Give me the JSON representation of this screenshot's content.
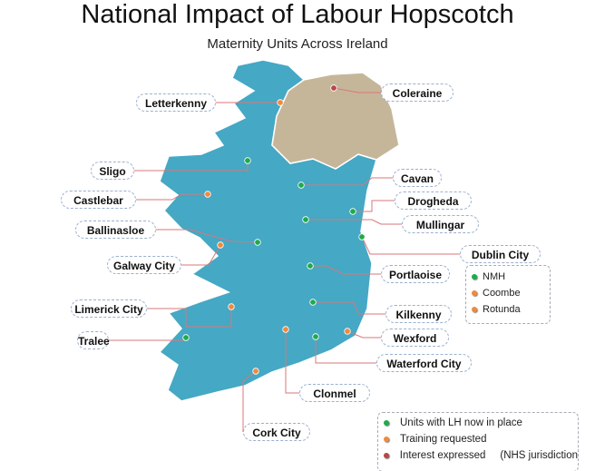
{
  "title": "National Impact of Labour Hopscotch",
  "subtitle": "Maternity Units Across Ireland",
  "colors": {
    "republic": "#45a8c4",
    "northern_ireland": "#c6b699",
    "in_place": "#1faa4b",
    "training": "#f08a3c",
    "interest": "#b8474a",
    "leader": "#d9777a"
  },
  "locations": [
    {
      "name": "Letterkenny",
      "status": "training"
    },
    {
      "name": "Coleraine",
      "status": "interest"
    },
    {
      "name": "Sligo",
      "status": "in_place"
    },
    {
      "name": "Castlebar",
      "status": "training"
    },
    {
      "name": "Cavan",
      "status": "in_place"
    },
    {
      "name": "Drogheda",
      "status": "in_place"
    },
    {
      "name": "Mullingar",
      "status": "in_place"
    },
    {
      "name": "Ballinasloe",
      "status": "in_place"
    },
    {
      "name": "Dublin City",
      "status": "in_place"
    },
    {
      "name": "Galway City",
      "status": "training"
    },
    {
      "name": "Portlaoise",
      "status": "in_place"
    },
    {
      "name": "Limerick City",
      "status": "training"
    },
    {
      "name": "Kilkenny",
      "status": "in_place"
    },
    {
      "name": "Tralee",
      "status": "in_place"
    },
    {
      "name": "Wexford",
      "status": "training"
    },
    {
      "name": "Waterford City",
      "status": "in_place"
    },
    {
      "name": "Clonmel",
      "status": "training"
    },
    {
      "name": "Cork City",
      "status": "training"
    }
  ],
  "dublin_units": [
    {
      "name": "NMH",
      "status": "in_place"
    },
    {
      "name": "Coombe",
      "status": "training"
    },
    {
      "name": "Rotunda",
      "status": "training"
    }
  ],
  "legend": [
    {
      "label": "Units with LH now in place",
      "status": "in_place"
    },
    {
      "label": "Training requested",
      "status": "training"
    },
    {
      "label": "Interest expressed     (NHS jurisdiction",
      "status": "interest"
    }
  ]
}
